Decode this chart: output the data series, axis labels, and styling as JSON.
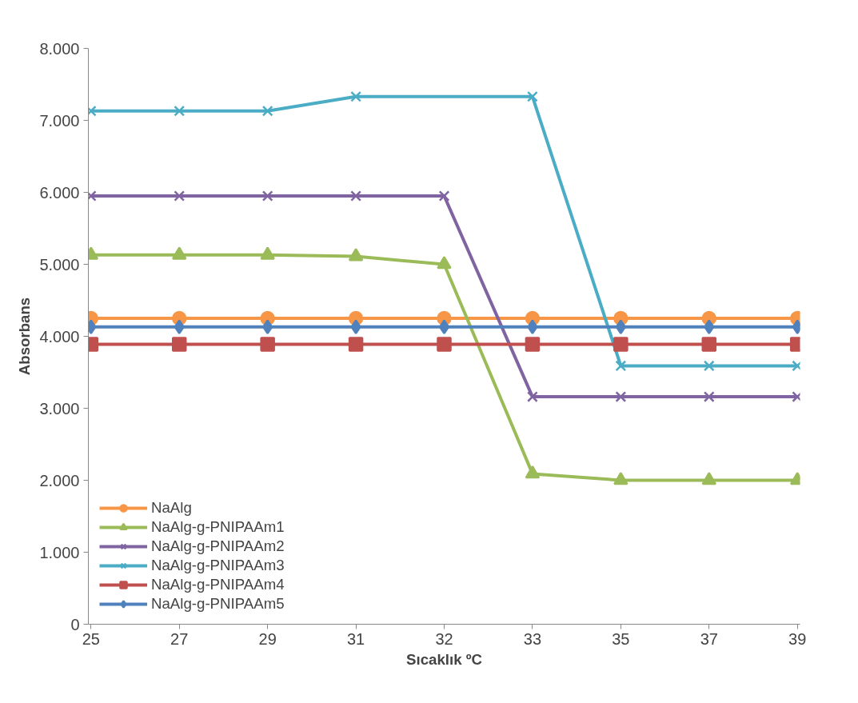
{
  "chart_data": {
    "type": "line",
    "xlabel": "Sıcaklık ºC",
    "ylabel": "Absorbans",
    "categories": [
      "25",
      "27",
      "29",
      "31",
      "32",
      "33",
      "35",
      "37",
      "39"
    ],
    "ylim": [
      0,
      8000
    ],
    "yticks": [
      0,
      {
        "value": 1000,
        "label": "1.000"
      },
      {
        "value": 2000,
        "label": "2.000"
      },
      {
        "value": 3000,
        "label": "3.000"
      },
      {
        "value": 4000,
        "label": "4.000"
      },
      {
        "value": 5000,
        "label": "5.000"
      },
      {
        "value": 6000,
        "label": "6.000"
      },
      {
        "value": 7000,
        "label": "7.000"
      },
      {
        "value": 8000,
        "label": "8.000"
      }
    ],
    "grid": false,
    "legend": "bottom left",
    "line_style": "solid",
    "series": [
      {
        "name": "NaAlg",
        "color": "#f79646",
        "marker": "circle",
        "values": [
          4250,
          4250,
          4250,
          4250,
          4250,
          4250,
          4250,
          4250,
          4250
        ]
      },
      {
        "name": "NaAlg-g-PNIPAAm1",
        "color": "#9bbb59",
        "marker": "triangle",
        "values": [
          5130,
          5130,
          5130,
          5110,
          5000,
          2090,
          2000,
          2000,
          2000
        ]
      },
      {
        "name": "NaAlg-g-PNIPAAm2",
        "color": "#8064a2",
        "marker": "cross",
        "values": [
          5950,
          5950,
          5950,
          5950,
          5950,
          3160,
          3160,
          3160,
          3160
        ]
      },
      {
        "name": "NaAlg-g-PNIPAAm3",
        "color": "#4bacc6",
        "marker": "cross",
        "values": [
          7130,
          7130,
          7130,
          7330,
          null,
          7330,
          3590,
          3590,
          3590
        ]
      },
      {
        "name": "NaAlg-g-PNIPAAm4",
        "color": "#c0504d",
        "marker": "square",
        "values": [
          3890,
          3890,
          3890,
          3890,
          3890,
          3890,
          3890,
          3890,
          3890
        ]
      },
      {
        "name": "NaAlg-g-PNIPAAm5",
        "color": "#4f81bd",
        "marker": "diamond",
        "values": [
          4130,
          4130,
          4130,
          4130,
          4130,
          4130,
          4130,
          4130,
          4130
        ]
      }
    ]
  }
}
